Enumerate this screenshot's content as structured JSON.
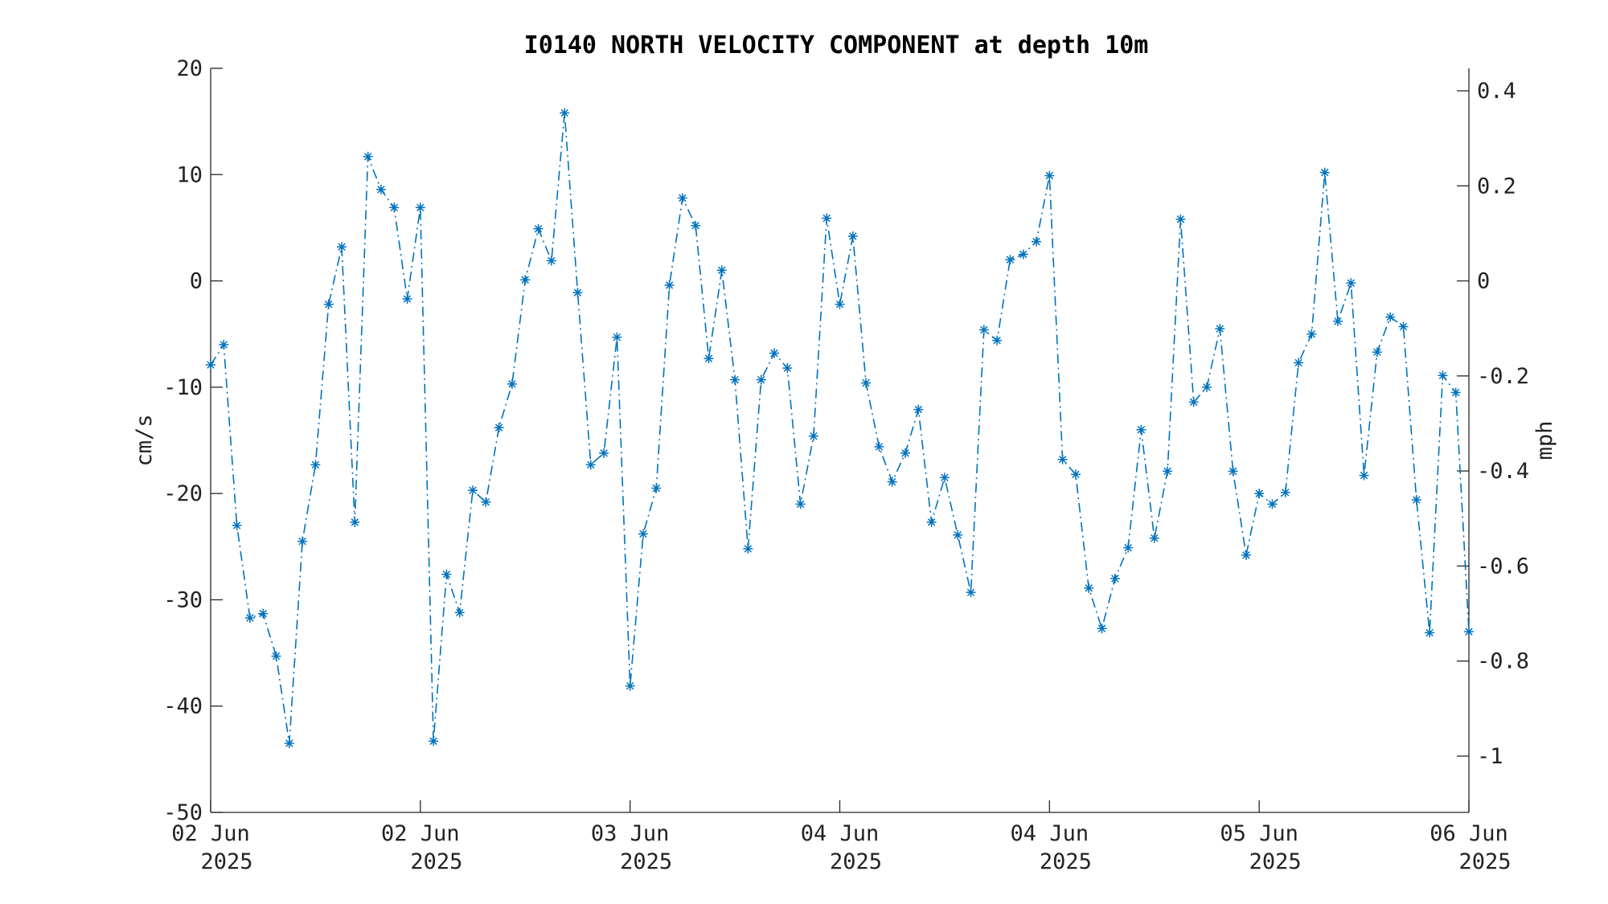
{
  "chart_data": {
    "type": "line",
    "title": "I0140 NORTH VELOCITY COMPONENT at depth 10m",
    "ylabel": "cm/s",
    "ylabel_right": "mph",
    "ylim": [
      -50,
      20
    ],
    "yticks": [
      20,
      10,
      0,
      -10,
      -20,
      -30,
      -40,
      -50
    ],
    "yticks_right": [
      0.4,
      0.2,
      0,
      -0.2,
      -0.4,
      -0.6,
      -0.8,
      -1
    ],
    "xlim": [
      0,
      96
    ],
    "xticks": [
      {
        "x": 0,
        "line1": "02 Jun",
        "line2": "2025"
      },
      {
        "x": 16,
        "line1": "02 Jun",
        "line2": "2025"
      },
      {
        "x": 32,
        "line1": "03 Jun",
        "line2": "2025"
      },
      {
        "x": 48,
        "line1": "04 Jun",
        "line2": "2025"
      },
      {
        "x": 64,
        "line1": "04 Jun",
        "line2": "2025"
      },
      {
        "x": 80,
        "line1": "05 Jun",
        "line2": "2025"
      },
      {
        "x": 96,
        "line1": "06 Jun",
        "line2": "2025"
      }
    ],
    "series": [
      {
        "color": "#0072BD",
        "marker": "asterisk",
        "line_style": "dash-dot",
        "values": [
          -7.9,
          -6.0,
          -23.0,
          -31.7,
          -31.3,
          -35.3,
          -43.5,
          -24.5,
          -17.3,
          -2.2,
          3.2,
          -22.7,
          11.7,
          8.6,
          6.9,
          -1.7,
          6.9,
          -43.3,
          -27.6,
          -31.2,
          -19.7,
          -20.8,
          -13.8,
          -9.7,
          0.1,
          4.9,
          1.9,
          15.8,
          -1.1,
          -17.3,
          -16.2,
          -5.3,
          -38.1,
          -23.8,
          -19.5,
          -0.4,
          7.8,
          5.2,
          -7.3,
          1.0,
          -9.3,
          -25.2,
          -9.3,
          -6.8,
          -8.2,
          -21.0,
          -14.6,
          5.9,
          -2.2,
          4.2,
          -9.6,
          -15.6,
          -18.9,
          -16.2,
          -12.1,
          -22.7,
          -18.5,
          -23.9,
          -29.3,
          -4.6,
          -5.6,
          2.0,
          2.5,
          3.7,
          9.9,
          -16.8,
          -18.2,
          -28.9,
          -32.7,
          -28.0,
          -25.1,
          -14.0,
          -24.2,
          -17.9,
          5.8,
          -11.4,
          -10.0,
          -4.5,
          -17.9,
          -25.8,
          -20.0,
          -21.0,
          -19.9,
          -7.7,
          -5.0,
          10.2,
          -3.8,
          -0.2,
          -18.3,
          -6.7,
          -3.4,
          -4.3,
          -20.6,
          -33.1,
          -8.9,
          -10.5,
          -33.0
        ]
      }
    ]
  }
}
